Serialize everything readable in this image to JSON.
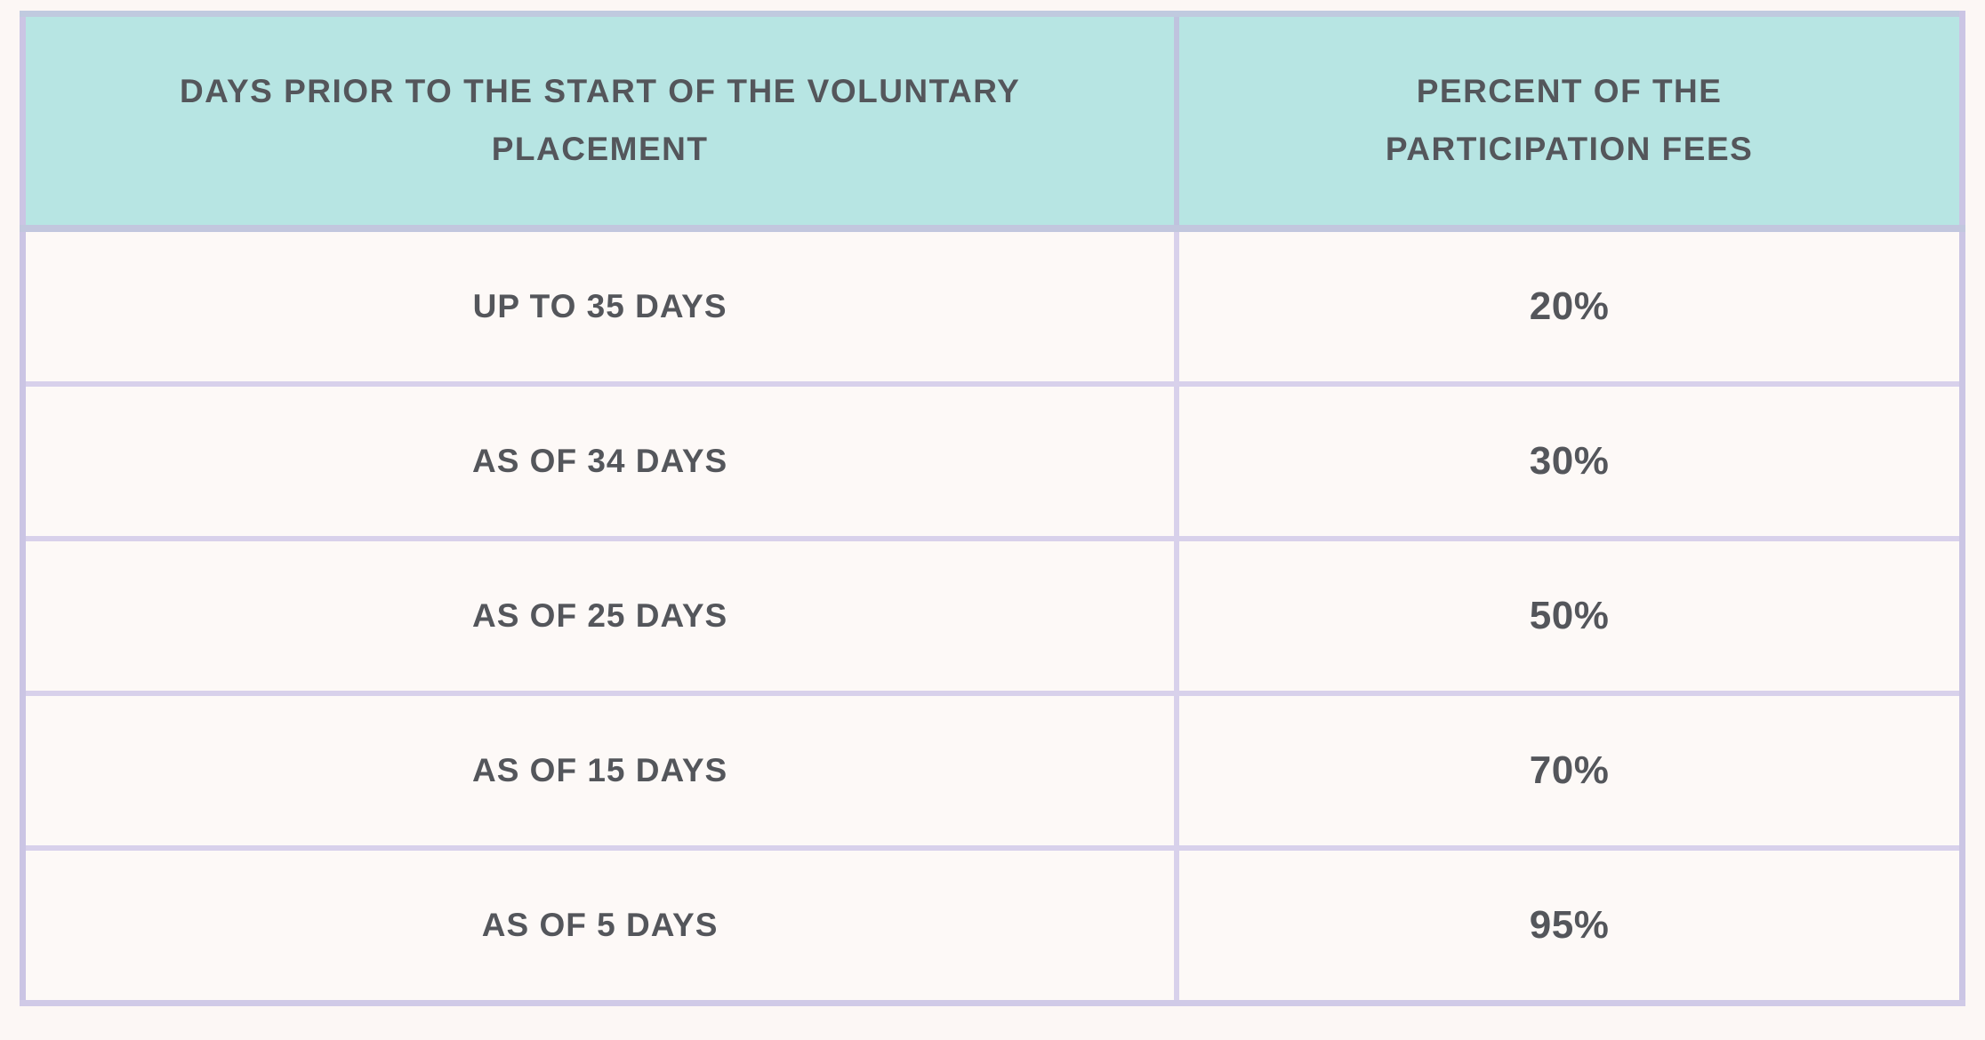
{
  "colors": {
    "page_background": "#fcf7f5",
    "header_background": "#b7e5e3",
    "cell_background": "#fdf9f7",
    "border_lavender": "#d8d1eb",
    "outer_border": "#cbc5e4",
    "text": "#54565b"
  },
  "table": {
    "headers": [
      "DAYS PRIOR TO THE START OF THE VOLUNTARY PLACEMENT",
      "PERCENT OF THE PARTICIPATION FEES"
    ],
    "rows": [
      {
        "days": "UP TO 35 DAYS",
        "percent": "20%"
      },
      {
        "days": "AS OF 34 DAYS",
        "percent": "30%"
      },
      {
        "days": "AS OF 25 DAYS",
        "percent": "50%"
      },
      {
        "days": "AS OF 15 DAYS",
        "percent": "70%"
      },
      {
        "days": "AS OF 5 DAYS",
        "percent": "95%"
      }
    ]
  },
  "chart_data": {
    "type": "table",
    "title": "",
    "columns": [
      "DAYS PRIOR TO THE START OF THE VOLUNTARY PLACEMENT",
      "PERCENT OF THE PARTICIPATION FEES"
    ],
    "rows": [
      [
        "UP TO 35 DAYS",
        "20%"
      ],
      [
        "AS OF 34 DAYS",
        "30%"
      ],
      [
        "AS OF 25 DAYS",
        "50%"
      ],
      [
        "AS OF 15 DAYS",
        "70%"
      ],
      [
        "AS OF 5 DAYS",
        "95%"
      ]
    ],
    "categories": [
      "UP TO 35 DAYS",
      "AS OF 34 DAYS",
      "AS OF 25 DAYS",
      "AS OF 15 DAYS",
      "AS OF 5 DAYS"
    ],
    "values": [
      20,
      30,
      50,
      70,
      95
    ]
  }
}
